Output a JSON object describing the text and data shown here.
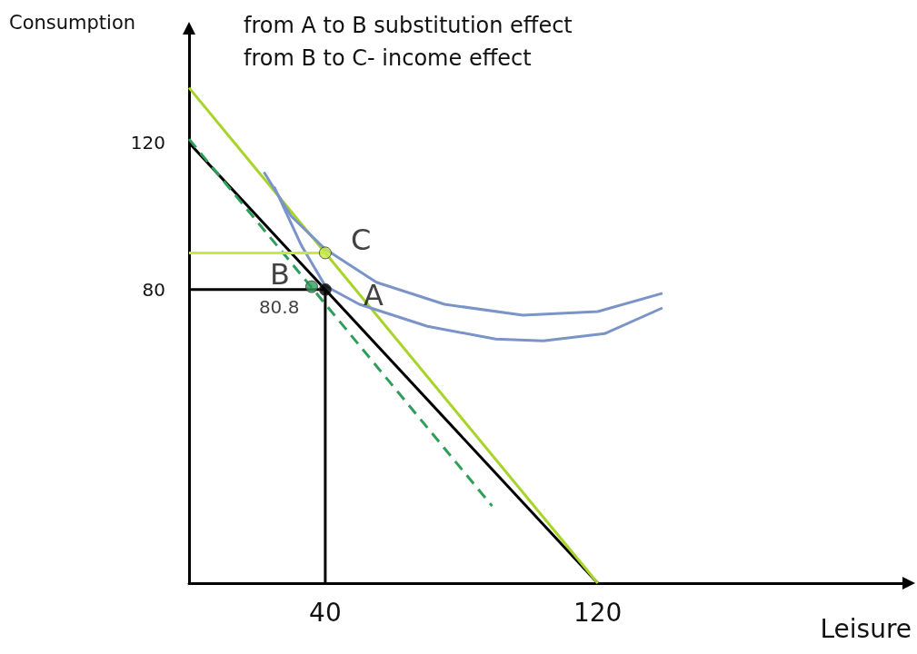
{
  "chart_data": {
    "type": "line",
    "xlabel": "Leisure",
    "ylabel": "Consumption",
    "xlim": [
      0,
      210
    ],
    "ylim": [
      0,
      150
    ],
    "xticks": [
      40,
      120
    ],
    "yticks": [
      80,
      120
    ],
    "grid": false,
    "series": [
      {
        "color": "#000000",
        "x": [
          0,
          120
        ],
        "values": [
          120,
          0
        ],
        "line_style": "solid",
        "marker": "none"
      },
      {
        "color": "#a8d42a",
        "x": [
          0,
          120
        ],
        "values": [
          135,
          0
        ],
        "line_style": "solid",
        "marker": "none"
      },
      {
        "color": "#2f9e5a",
        "x": [
          0,
          89
        ],
        "values": [
          121,
          21
        ],
        "line_style": "dashed",
        "marker": "none"
      },
      {
        "color": "#7b94c8",
        "x": [
          22,
          30,
          40,
          55,
          75,
          98,
          120,
          139
        ],
        "values": [
          112,
          100,
          91,
          82,
          76,
          73,
          74,
          79
        ],
        "line_style": "solid",
        "marker": "none"
      },
      {
        "color": "#7b94c8",
        "x": [
          25,
          33,
          40,
          50,
          70,
          90,
          104,
          122,
          139
        ],
        "values": [
          108,
          92,
          81,
          76,
          70,
          66.5,
          66,
          68,
          75
        ],
        "line_style": "solid",
        "marker": "none"
      },
      {
        "color": "#000000",
        "x": [
          0,
          40,
          40
        ],
        "values": [
          80,
          80,
          0
        ],
        "line_style": "solid",
        "marker": "none"
      },
      {
        "color": "#c8e84a",
        "x": [
          0,
          40
        ],
        "values": [
          90,
          90
        ],
        "line_style": "solid",
        "marker": "none"
      },
      {
        "type": "scatter",
        "name": "A",
        "color": "#000000",
        "x": [
          40
        ],
        "values": [
          80
        ],
        "marker": "circle"
      },
      {
        "type": "scatter",
        "name": "B",
        "color": "#2f9e5a",
        "x": [
          36
        ],
        "values": [
          80.8
        ],
        "value_labels": [
          "80.8"
        ],
        "marker": "circle"
      },
      {
        "type": "scatter",
        "name": "C",
        "color": "#c8e84a",
        "x": [
          40
        ],
        "values": [
          90
        ],
        "marker": "circle"
      }
    ],
    "annotations": [
      "from A to B substitution effect",
      "from B to C- income effect"
    ]
  }
}
